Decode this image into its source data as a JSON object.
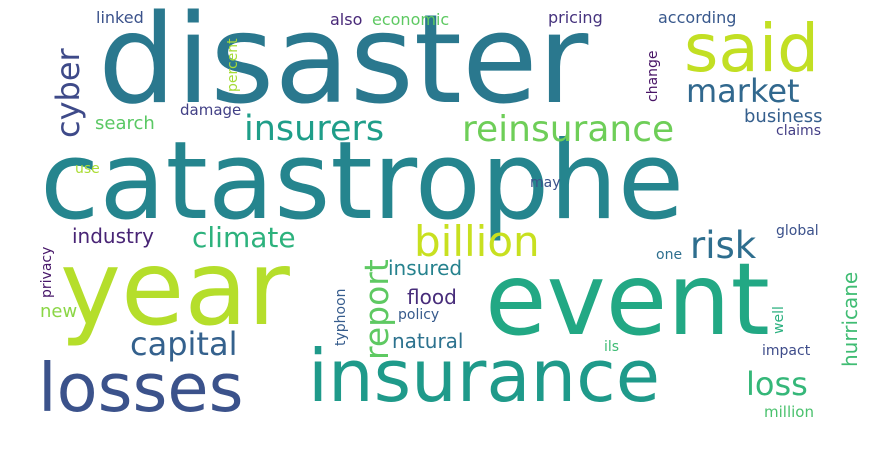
{
  "cloud": {
    "words": [
      {
        "text": "disaster",
        "color": "#2a788e"
      },
      {
        "text": "catastrophe",
        "color": "#25858e"
      },
      {
        "text": "year",
        "color": "#b5de2b"
      },
      {
        "text": "event",
        "color": "#22a884"
      },
      {
        "text": "insurance",
        "color": "#1f9a8a"
      },
      {
        "text": "losses",
        "color": "#3b528b"
      },
      {
        "text": "said",
        "color": "#c2df23"
      },
      {
        "text": "reinsurance",
        "color": "#6ece58"
      },
      {
        "text": "insurers",
        "color": "#1f9e89"
      },
      {
        "text": "market",
        "color": "#31688e"
      },
      {
        "text": "billion",
        "color": "#c8e020"
      },
      {
        "text": "risk",
        "color": "#2e6e8e"
      },
      {
        "text": "climate",
        "color": "#2db27d"
      },
      {
        "text": "capital",
        "color": "#34618d"
      },
      {
        "text": "loss",
        "color": "#35b779"
      },
      {
        "text": "report",
        "color": "#5ec962"
      },
      {
        "text": "cyber",
        "color": "#3e4a89"
      },
      {
        "text": "industry",
        "color": "#482475"
      },
      {
        "text": "insured",
        "color": "#26828e"
      },
      {
        "text": "flood",
        "color": "#472c7a"
      },
      {
        "text": "natural",
        "color": "#2c728e"
      },
      {
        "text": "hurricane",
        "color": "#3fbc73"
      },
      {
        "text": "business",
        "color": "#355f8d"
      },
      {
        "text": "search",
        "color": "#5ac864"
      },
      {
        "text": "damage",
        "color": "#424086"
      },
      {
        "text": "new",
        "color": "#8bd646"
      },
      {
        "text": "linked",
        "color": "#3b528b"
      },
      {
        "text": "also",
        "color": "#482878"
      },
      {
        "text": "economic",
        "color": "#5ec962"
      },
      {
        "text": "pricing",
        "color": "#46337e"
      },
      {
        "text": "according",
        "color": "#38588c"
      },
      {
        "text": "percent",
        "color": "#a5db36"
      },
      {
        "text": "change",
        "color": "#471365"
      },
      {
        "text": "claims",
        "color": "#433e85"
      },
      {
        "text": "use",
        "color": "#aadc32"
      },
      {
        "text": "may",
        "color": "#3b528b"
      },
      {
        "text": "privacy",
        "color": "#48186a"
      },
      {
        "text": "typhoon",
        "color": "#365c8d"
      },
      {
        "text": "policy",
        "color": "#375a8c"
      },
      {
        "text": "global",
        "color": "#3b518b"
      },
      {
        "text": "one",
        "color": "#2e6f8e"
      },
      {
        "text": "well",
        "color": "#2ab07f"
      },
      {
        "text": "ils",
        "color": "#3dbc74"
      },
      {
        "text": "impact",
        "color": "#3e4c8a"
      },
      {
        "text": "million",
        "color": "#4ac16d"
      }
    ]
  }
}
